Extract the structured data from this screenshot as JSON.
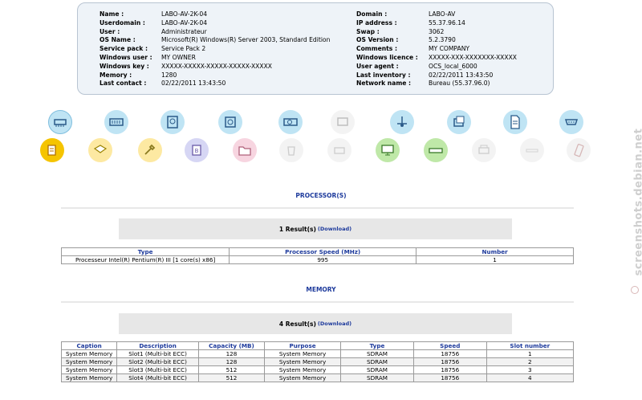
{
  "info": {
    "left": [
      {
        "label": "Name :",
        "value": "LABO-AV-2K-04"
      },
      {
        "label": "Userdomain :",
        "value": "LABO-AV-2K-04"
      },
      {
        "label": "User :",
        "value": "Administrateur"
      },
      {
        "label": "OS Name :",
        "value": "Microsoft(R) Windows(R) Server 2003, Standard Edition"
      },
      {
        "label": "Service pack :",
        "value": "Service Pack 2"
      },
      {
        "label": "Windows user :",
        "value": "MY OWNER"
      },
      {
        "label": "Windows key :",
        "value": "XXXXX-XXXXX-XXXXX-XXXXX-XXXXX"
      },
      {
        "label": "Memory :",
        "value": "1280"
      },
      {
        "label": "Last contact :",
        "value": "02/22/2011 13:43:50"
      }
    ],
    "right": [
      {
        "label": "Domain :",
        "value": "LABO-AV"
      },
      {
        "label": "IP address :",
        "value": "55.37.96.14"
      },
      {
        "label": "Swap :",
        "value": "3062"
      },
      {
        "label": "OS Version :",
        "value": "5.2.3790"
      },
      {
        "label": "Comments :",
        "value": "MY COMPANY"
      },
      {
        "label": "Windows licence :",
        "value": "XXXXX-XXX-XXXXXXX-XXXXX"
      },
      {
        "label": "User agent :",
        "value": "OCS_local_6000"
      },
      {
        "label": "Last inventory :",
        "value": "02/22/2011 13:43:50"
      },
      {
        "label": "Network name :",
        "value": "Bureau (55.37.96.0)"
      }
    ]
  },
  "processor": {
    "title": "PROCESSOR(S)",
    "result": "1 Result(s)",
    "download": "(Download)",
    "columns": [
      "Type",
      "Processor Speed (MHz)",
      "Number"
    ],
    "rows": [
      [
        "Processeur Intel(R) Pentium(R) III [1 core(s) x86]",
        "995",
        "1"
      ]
    ]
  },
  "memory": {
    "title": "MEMORY",
    "result": "4 Result(s)",
    "download": "(Download)",
    "columns": [
      "Caption",
      "Description",
      "Capacity (MB)",
      "Purpose",
      "Type",
      "Speed",
      "Slot number"
    ],
    "rows": [
      [
        "System Memory",
        "Slot1 (Multi-bit ECC)",
        "128",
        "System Memory",
        "SDRAM",
        "18756",
        "1"
      ],
      [
        "System Memory",
        "Slot2 (Multi-bit ECC)",
        "128",
        "System Memory",
        "SDRAM",
        "18756",
        "2"
      ],
      [
        "System Memory",
        "Slot3 (Multi-bit ECC)",
        "512",
        "System Memory",
        "SDRAM",
        "18756",
        "3"
      ],
      [
        "System Memory",
        "Slot4 (Multi-bit ECC)",
        "512",
        "System Memory",
        "SDRAM",
        "18756",
        "4"
      ]
    ]
  },
  "icons_row1": [
    "processor-icon",
    "memory-icon",
    "storage-icon",
    "drives-icon",
    "video-icon",
    "monitor-grey-icon",
    "network-icon",
    "ports-icon",
    "document-icon",
    "serial-port-icon"
  ],
  "icons_row2": [
    "software-icon",
    "registry-icon",
    "tools-icon",
    "bios-icon",
    "folder-icon",
    "trash-icon",
    "printer-grey-icon",
    "display-icon",
    "modem-icon",
    "printer-icon",
    "slot-icon",
    "phone-icon"
  ],
  "watermark": "screenshots.debian.net",
  "colors": {
    "accent": "#1d3a9c",
    "panel": "#eef3f8"
  }
}
